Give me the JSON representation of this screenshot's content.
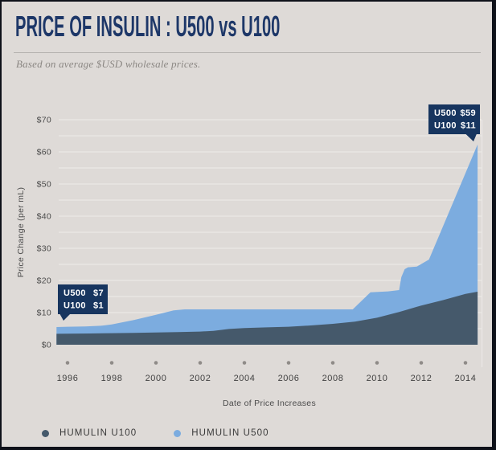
{
  "header": {
    "title": "PRICE OF INSULIN : U500 vs U100",
    "subtitle": "Based on average $USD wholesale prices."
  },
  "chart_data": {
    "type": "area",
    "title": "PRICE OF INSULIN : U500 vs U100",
    "subtitle": "Based on average $USD wholesale prices.",
    "xlabel": "Date of Price Increases",
    "ylabel": "Price Change (per mL)",
    "xlim": [
      1995.5,
      2014.55
    ],
    "ylim": [
      0,
      70
    ],
    "grid": "horizontal lines every $5, light on gray",
    "legend_position": "bottom-left",
    "x_ticks": [
      1996,
      1998,
      2000,
      2002,
      2004,
      2006,
      2008,
      2010,
      2012,
      2014
    ],
    "y_ticks": [
      "$0",
      "$10",
      "$20",
      "$30",
      "$40",
      "$50",
      "$60",
      "$70"
    ],
    "series": [
      {
        "name": "HUMULIN U500",
        "color": "#7cacdf",
        "points": [
          [
            1995.5,
            5.5
          ],
          [
            1996,
            5.6
          ],
          [
            1996.8,
            5.7
          ],
          [
            1997.5,
            5.9
          ],
          [
            1998,
            6.3
          ],
          [
            1999,
            7.7
          ],
          [
            2000,
            9.3
          ],
          [
            2000.8,
            10.7
          ],
          [
            2001.3,
            11
          ],
          [
            2008.9,
            11
          ],
          [
            2009.7,
            16.3
          ],
          [
            2010.5,
            16.6
          ],
          [
            2011.0,
            17
          ],
          [
            2011.1,
            21
          ],
          [
            2011.25,
            23.5
          ],
          [
            2011.4,
            24.1
          ],
          [
            2011.8,
            24.3
          ],
          [
            2012.35,
            26.5
          ],
          [
            2014.55,
            62.3
          ]
        ]
      },
      {
        "name": "HUMULIN U100",
        "color": "#45596b",
        "points": [
          [
            1995.5,
            3.4
          ],
          [
            1997,
            3.5
          ],
          [
            1998,
            3.6
          ],
          [
            1999,
            3.7
          ],
          [
            2000,
            3.8
          ],
          [
            2001,
            3.95
          ],
          [
            2002,
            4.1
          ],
          [
            2002.6,
            4.3
          ],
          [
            2003.3,
            4.9
          ],
          [
            2004,
            5.2
          ],
          [
            2005,
            5.4
          ],
          [
            2006,
            5.6
          ],
          [
            2007,
            6.0
          ],
          [
            2008,
            6.5
          ],
          [
            2009,
            7.2
          ],
          [
            2010,
            8.4
          ],
          [
            2011,
            10.2
          ],
          [
            2012,
            12.2
          ],
          [
            2013,
            13.9
          ],
          [
            2014,
            15.8
          ],
          [
            2014.55,
            16.5
          ]
        ]
      }
    ],
    "callout_color": "#17355f",
    "annotations": [
      {
        "id": "start-1996",
        "lines": [
          {
            "label": "U500",
            "value": "$7"
          },
          {
            "label": "U100",
            "value": "$1"
          }
        ]
      },
      {
        "id": "end-2014",
        "lines": [
          {
            "label": "U500",
            "value": "$59"
          },
          {
            "label": "U100",
            "value": "$11"
          }
        ]
      }
    ]
  },
  "legend": {
    "items": [
      {
        "label": "HUMULIN U100",
        "color": "#45596b"
      },
      {
        "label": "HUMULIN U500",
        "color": "#7cacdf"
      }
    ]
  }
}
